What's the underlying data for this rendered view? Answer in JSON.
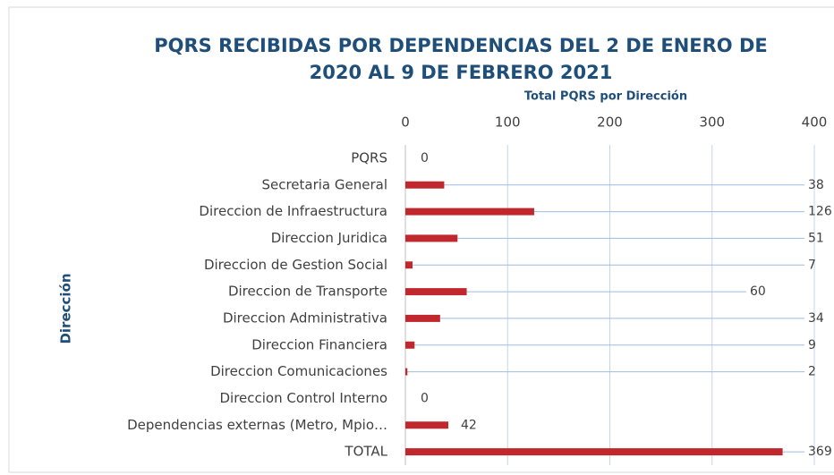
{
  "chart_data": {
    "type": "hbar",
    "title": "PQRS RECIBIDAS POR DEPENDENCIAS DEL 2 DE ENERO DE",
    "title_line2": "2020 AL 9 DE FEBRERO 2021",
    "x_label": "Total PQRS por Dirección",
    "y_label": "Dirección",
    "categories": [
      "PQRS",
      "Secretaria General",
      "Direccion de Infraestructura",
      "Direccion Juridica",
      "Direccion de Gestion Social",
      "Direccion de Transporte",
      "Direccion Administrativa",
      "Direccion Financiera",
      "Direccion Comunicaciones",
      "Direccion Control Interno",
      "Dependencias externas (Metro, Mpio…",
      "TOTAL"
    ],
    "values": [
      0,
      38,
      126,
      51,
      7,
      60,
      34,
      9,
      2,
      0,
      42,
      369
    ],
    "color": "#c0282d",
    "xlim": [
      0,
      400
    ],
    "xticks": [
      0,
      100,
      200,
      300,
      400
    ],
    "grid": true
  }
}
